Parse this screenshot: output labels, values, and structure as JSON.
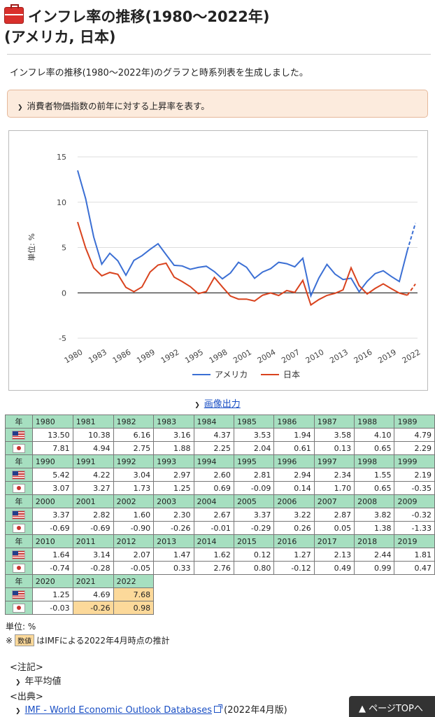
{
  "header": {
    "title_line1": "インフレ率の推移(1980〜2022年)",
    "title_line2": "(アメリカ, 日本)",
    "icon": "toolbox-icon"
  },
  "intro": "インフレ率の推移(1980〜2022年)のグラフと時系列表を生成しました。",
  "note": "消費者物価指数の前年に対する上昇率を表す。",
  "image_output_label": "画像出力",
  "colors": {
    "usa": "#3b6fd4",
    "japan": "#d9431e",
    "header_bg": "#a6dfc0",
    "estimate_bg": "#fcd99a",
    "note_bg": "#fcebdd"
  },
  "chart_data": {
    "type": "line",
    "ylabel": "単位: %",
    "ylim": [
      -5,
      15
    ],
    "yticks": [
      -5,
      0,
      5,
      10,
      15
    ],
    "x": [
      1980,
      1981,
      1982,
      1983,
      1984,
      1985,
      1986,
      1987,
      1988,
      1989,
      1990,
      1991,
      1992,
      1993,
      1994,
      1995,
      1996,
      1997,
      1998,
      1999,
      2000,
      2001,
      2002,
      2003,
      2004,
      2005,
      2006,
      2007,
      2008,
      2009,
      2010,
      2011,
      2012,
      2013,
      2014,
      2015,
      2016,
      2017,
      2018,
      2019,
      2020,
      2021,
      2022
    ],
    "xticks": [
      1980,
      1983,
      1986,
      1989,
      1992,
      1995,
      1998,
      2001,
      2004,
      2007,
      2010,
      2013,
      2016,
      2019,
      2022
    ],
    "estimate_from": 2021,
    "legend_position": "bottom",
    "series": [
      {
        "name": "アメリカ",
        "color": "#3b6fd4",
        "values": [
          13.5,
          10.38,
          6.16,
          3.16,
          4.37,
          3.53,
          1.94,
          3.58,
          4.1,
          4.79,
          5.42,
          4.22,
          3.04,
          2.97,
          2.6,
          2.81,
          2.94,
          2.34,
          1.55,
          2.19,
          3.37,
          2.82,
          1.6,
          2.3,
          2.67,
          3.37,
          3.22,
          2.87,
          3.82,
          -0.32,
          1.64,
          3.14,
          2.07,
          1.47,
          1.62,
          0.12,
          1.27,
          2.13,
          2.44,
          1.81,
          1.25,
          4.69,
          7.68
        ]
      },
      {
        "name": "日本",
        "color": "#d9431e",
        "values": [
          7.81,
          4.94,
          2.75,
          1.88,
          2.25,
          2.04,
          0.61,
          0.13,
          0.65,
          2.29,
          3.07,
          3.27,
          1.73,
          1.25,
          0.69,
          -0.09,
          0.14,
          1.7,
          0.65,
          -0.35,
          -0.69,
          -0.69,
          -0.9,
          -0.26,
          -0.01,
          -0.29,
          0.26,
          0.05,
          1.38,
          -1.33,
          -0.74,
          -0.28,
          -0.05,
          0.33,
          2.76,
          0.8,
          -0.12,
          0.49,
          0.99,
          0.47,
          -0.03,
          -0.26,
          0.98
        ]
      }
    ]
  },
  "table": {
    "year_label": "年",
    "blocks": [
      {
        "years": [
          "1980",
          "1981",
          "1982",
          "1983",
          "1984",
          "1985",
          "1986",
          "1987",
          "1988",
          "1989"
        ],
        "us": [
          "13.50",
          "10.38",
          "6.16",
          "3.16",
          "4.37",
          "3.53",
          "1.94",
          "3.58",
          "4.10",
          "4.79"
        ],
        "jp": [
          "7.81",
          "4.94",
          "2.75",
          "1.88",
          "2.25",
          "2.04",
          "0.61",
          "0.13",
          "0.65",
          "2.29"
        ]
      },
      {
        "years": [
          "1990",
          "1991",
          "1992",
          "1993",
          "1994",
          "1995",
          "1996",
          "1997",
          "1998",
          "1999"
        ],
        "us": [
          "5.42",
          "4.22",
          "3.04",
          "2.97",
          "2.60",
          "2.81",
          "2.94",
          "2.34",
          "1.55",
          "2.19"
        ],
        "jp": [
          "3.07",
          "3.27",
          "1.73",
          "1.25",
          "0.69",
          "-0.09",
          "0.14",
          "1.70",
          "0.65",
          "-0.35"
        ]
      },
      {
        "years": [
          "2000",
          "2001",
          "2002",
          "2003",
          "2004",
          "2005",
          "2006",
          "2007",
          "2008",
          "2009"
        ],
        "us": [
          "3.37",
          "2.82",
          "1.60",
          "2.30",
          "2.67",
          "3.37",
          "3.22",
          "2.87",
          "3.82",
          "-0.32"
        ],
        "jp": [
          "-0.69",
          "-0.69",
          "-0.90",
          "-0.26",
          "-0.01",
          "-0.29",
          "0.26",
          "0.05",
          "1.38",
          "-1.33"
        ]
      },
      {
        "years": [
          "2010",
          "2011",
          "2012",
          "2013",
          "2014",
          "2015",
          "2016",
          "2017",
          "2018",
          "2019"
        ],
        "us": [
          "1.64",
          "3.14",
          "2.07",
          "1.47",
          "1.62",
          "0.12",
          "1.27",
          "2.13",
          "2.44",
          "1.81"
        ],
        "jp": [
          "-0.74",
          "-0.28",
          "-0.05",
          "0.33",
          "2.76",
          "0.80",
          "-0.12",
          "0.49",
          "0.99",
          "0.47"
        ]
      },
      {
        "years": [
          "2020",
          "2021",
          "2022"
        ],
        "us": [
          "1.25",
          "4.69",
          "7.68"
        ],
        "jp": [
          "-0.03",
          "-0.26",
          "0.98"
        ],
        "estimate": {
          "us": [
            false,
            false,
            true
          ],
          "jp": [
            false,
            true,
            true
          ]
        }
      }
    ]
  },
  "unit_label": "単位: %",
  "estimate_note": {
    "prefix": "※",
    "badge": "数値",
    "text": "はIMFによる2022年4月時点の推計"
  },
  "footnote": {
    "heading": "<注記>",
    "item": "年平均値"
  },
  "source": {
    "heading": "<出典>",
    "link": "IMF - World Economic Outlook Databases",
    "suffix": "(2022年4月版)"
  },
  "page_top_label": "▲ ページTOPへ"
}
